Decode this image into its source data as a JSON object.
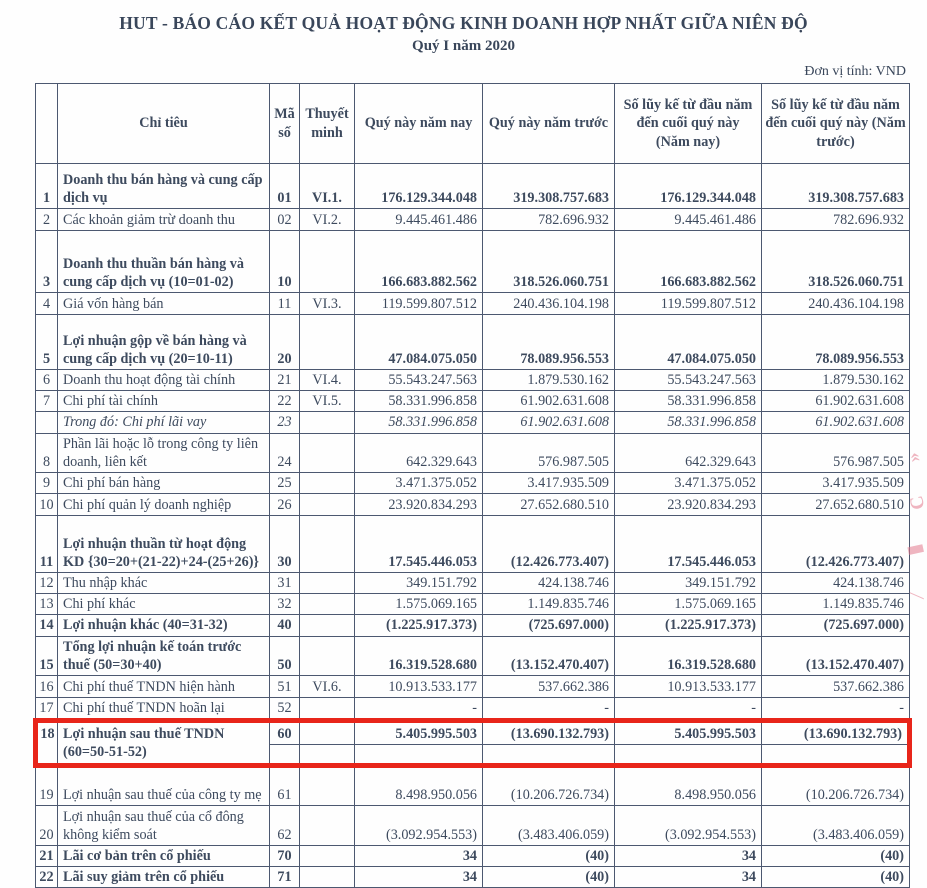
{
  "page": {
    "title": "HUT - BÁO CÁO KẾT QUẢ HOẠT ĐỘNG KINH DOANH HỢP NHẤT GIỮA NIÊN ĐỘ",
    "subtitle": "Quý I năm 2020",
    "unit_note": "Đơn vị tính: VND"
  },
  "table": {
    "columns": [
      "",
      "Chỉ tiêu",
      "Mã số",
      "Thuyết minh",
      "Quý này năm nay",
      "Quý này năm trước",
      "Số lũy kế từ đầu năm đến cuối quý này (Năm nay)",
      "Số lũy kế từ đầu năm đến cuối quý này (Năm trước)"
    ],
    "rows": [
      {
        "no": "1",
        "label": "Doanh thu bán hàng và cung cấp dịch vụ",
        "code": "01",
        "note": "VI.1.",
        "values": [
          "176.129.344.048",
          "319.308.757.683",
          "176.129.344.048",
          "319.308.757.683"
        ],
        "style": "bold"
      },
      {
        "no": "2",
        "label": "Các khoản giảm trừ doanh thu",
        "code": "02",
        "note": "VI.2.",
        "values": [
          "9.445.461.486",
          "782.696.932",
          "9.445.461.486",
          "782.696.932"
        ],
        "style": "normal"
      },
      {
        "no": "3",
        "label": "Doanh thu thuần bán hàng và cung cấp dịch vụ (10=01-02)",
        "code": "10",
        "note": "",
        "values": [
          "166.683.882.562",
          "318.526.060.751",
          "166.683.882.562",
          "318.526.060.751"
        ],
        "style": "bold"
      },
      {
        "no": "4",
        "label": "Giá vốn hàng bán",
        "code": "11",
        "note": "VI.3.",
        "values": [
          "119.599.807.512",
          "240.436.104.198",
          "119.599.807.512",
          "240.436.104.198"
        ],
        "style": "normal"
      },
      {
        "no": "5",
        "label": "Lợi nhuận gộp về bán hàng và cung cấp dịch vụ (20=10-11)",
        "code": "20",
        "note": "",
        "values": [
          "47.084.075.050",
          "78.089.956.553",
          "47.084.075.050",
          "78.089.956.553"
        ],
        "style": "bold"
      },
      {
        "no": "6",
        "label": "Doanh thu hoạt động tài chính",
        "code": "21",
        "note": "VI.4.",
        "values": [
          "55.543.247.563",
          "1.879.530.162",
          "55.543.247.563",
          "1.879.530.162"
        ],
        "style": "normal"
      },
      {
        "no": "7",
        "label": "Chi phí tài chính",
        "code": "22",
        "note": "VI.5.",
        "values": [
          "58.331.996.858",
          "61.902.631.608",
          "58.331.996.858",
          "61.902.631.608"
        ],
        "style": "normal"
      },
      {
        "no": "",
        "label": "Trong đó: Chi phí lãi vay",
        "code": "23",
        "note": "",
        "values": [
          "58.331.996.858",
          "61.902.631.608",
          "58.331.996.858",
          "61.902.631.608"
        ],
        "style": "italic"
      },
      {
        "no": "8",
        "label": "Phần lãi hoặc lỗ trong công ty liên doanh, liên kết",
        "code": "24",
        "note": "",
        "values": [
          "642.329.643",
          "576.987.505",
          "642.329.643",
          "576.987.505"
        ],
        "style": "normal"
      },
      {
        "no": "9",
        "label": "Chi phí bán hàng",
        "code": "25",
        "note": "",
        "values": [
          "3.471.375.052",
          "3.417.935.509",
          "3.471.375.052",
          "3.417.935.509"
        ],
        "style": "normal"
      },
      {
        "no": "10",
        "label": "Chi phí quản lý doanh nghiệp",
        "code": "26",
        "note": "",
        "values": [
          "23.920.834.293",
          "27.652.680.510",
          "23.920.834.293",
          "27.652.680.510"
        ],
        "style": "normal"
      },
      {
        "no": "11",
        "label": "Lợi nhuận thuần từ hoạt động KD {30=20+(21-22)+24-(25+26)}",
        "code": "30",
        "note": "",
        "values": [
          "17.545.446.053",
          "(12.426.773.407)",
          "17.545.446.053",
          "(12.426.773.407)"
        ],
        "style": "bold"
      },
      {
        "no": "12",
        "label": "Thu nhập khác",
        "code": "31",
        "note": "",
        "values": [
          "349.151.792",
          "424.138.746",
          "349.151.792",
          "424.138.746"
        ],
        "style": "normal"
      },
      {
        "no": "13",
        "label": "Chi phí khác",
        "code": "32",
        "note": "",
        "values": [
          "1.575.069.165",
          "1.149.835.746",
          "1.575.069.165",
          "1.149.835.746"
        ],
        "style": "normal"
      },
      {
        "no": "14",
        "label": "Lợi nhuận khác (40=31-32)",
        "code": "40",
        "note": "",
        "values": [
          "(1.225.917.373)",
          "(725.697.000)",
          "(1.225.917.373)",
          "(725.697.000)"
        ],
        "style": "bold"
      },
      {
        "no": "15",
        "label": "Tổng lợi nhuận kế toán trước thuế (50=30+40)",
        "code": "50",
        "note": "",
        "values": [
          "16.319.528.680",
          "(13.152.470.407)",
          "16.319.528.680",
          "(13.152.470.407)"
        ],
        "style": "bold"
      },
      {
        "no": "16",
        "label": "Chi phí thuế TNDN hiện hành",
        "code": "51",
        "note": "VI.6.",
        "values": [
          "10.913.533.177",
          "537.662.386",
          "10.913.533.177",
          "537.662.386"
        ],
        "style": "normal"
      },
      {
        "no": "17",
        "label": "Chi phí thuế TNDN hoãn lại",
        "code": "52",
        "note": "",
        "values": [
          "-",
          "-",
          "-",
          "-"
        ],
        "style": "normal"
      },
      {
        "no": "18",
        "label": "Lợi nhuận sau thuế TNDN\n(60=50-51-52)",
        "code": "60",
        "note": "",
        "values": [
          "5.405.995.503",
          "(13.690.132.793)",
          "5.405.995.503",
          "(13.690.132.793)"
        ],
        "style": "bold",
        "highlight": true,
        "split": true
      },
      {
        "no": "19",
        "label": "Lợi nhuận sau thuế của công ty mẹ",
        "code": "61",
        "note": "",
        "values": [
          "8.498.950.056",
          "(10.206.726.734)",
          "8.498.950.056",
          "(10.206.726.734)"
        ],
        "style": "normal"
      },
      {
        "no": "20",
        "label": "Lợi nhuận sau thuế của cổ đông không kiểm soát",
        "code": "62",
        "note": "",
        "values": [
          "(3.092.954.553)",
          "(3.483.406.059)",
          "(3.092.954.553)",
          "(3.483.406.059)"
        ],
        "style": "normal"
      },
      {
        "no": "21",
        "label": "Lãi cơ bản trên cổ phiếu",
        "code": "70",
        "note": "",
        "values": [
          "34",
          "(40)",
          "34",
          "(40)"
        ],
        "style": "bold"
      },
      {
        "no": "22",
        "label": "Lãi suy giảm trên cổ phiếu",
        "code": "71",
        "note": "",
        "values": [
          "34",
          "(40)",
          "34",
          "(40)"
        ],
        "style": "bold"
      }
    ]
  },
  "annotations": {
    "highlight_color": "#e8251a",
    "margin_marks": [
      "«",
      "Ɔ",
      "▮",
      "⁄"
    ]
  }
}
